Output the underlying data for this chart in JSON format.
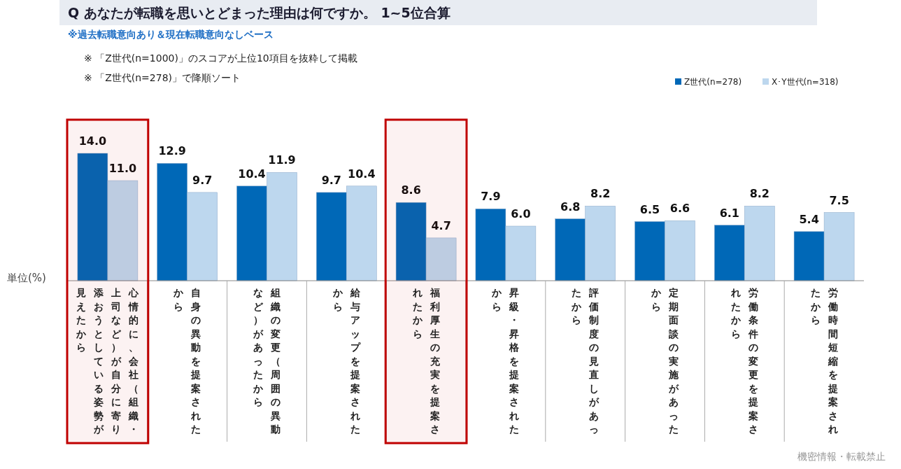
{
  "chart_data": {
    "type": "bar",
    "title": "Q あなたが転職を思いとどまった理由は何ですか。 1~5位合算",
    "subtitle": "※過去転職意向あり＆現在転職意向なしベース",
    "annotations": [
      "※ 「Z世代(n=1000)」のスコアが上位10項目を抜粋して掲載",
      "※ 「Z世代(n=278)」で降順ソート",
      "機密情報・転載禁止"
    ],
    "ylabel": "単位(%)",
    "categories": [
      "心情的に、会社（組織・上司など）が自分に寄り添おうとしている姿勢が見えたから",
      "自身の異動を提案されたから",
      "組織の変更（周囲の異動など）があったから",
      "給与アップを提案されたから",
      "福利厚生の充実を提案されたから",
      "昇級・昇格を提案されたから",
      "評価制度の見直しがあったから",
      "定期面談の実施があったから",
      "労働条件の変更を提案されたから",
      "労働時間短縮を提案されたから"
    ],
    "series": [
      {
        "name": "Z世代(n=278)",
        "color": "#0068b7",
        "values": [
          14.0,
          12.9,
          10.4,
          9.7,
          8.6,
          7.9,
          6.8,
          6.5,
          6.1,
          5.4
        ],
        "value_labels": [
          "14.0",
          "12.9",
          "10.4",
          "9.7",
          "8.6",
          "7.9",
          "6.8",
          "6.5",
          "6.1",
          "5.4"
        ]
      },
      {
        "name": "X･Y世代(n=318)",
        "color": "#bdd7ee",
        "values": [
          11.0,
          9.7,
          11.9,
          10.4,
          4.7,
          6.0,
          8.2,
          6.6,
          8.2,
          7.5
        ],
        "value_labels": [
          "11.0",
          "9.7",
          "11.9",
          "10.4",
          "4.7",
          "6.0",
          "8.2",
          "6.6",
          "8.2",
          "7.5"
        ]
      }
    ],
    "bands": [
      {
        "axis": "x",
        "from": "心情的に、会社（組織・上司など）が自分に寄り添おうとしている姿勢が見えたから",
        "to": "心情的に、会社（組織・上司など）が自分に寄り添おうとしている姿勢が見えたから",
        "color": "#c00000"
      },
      {
        "axis": "x",
        "from": "福利厚生の充実を提案されたから",
        "to": "福利厚生の充実を提案されたから",
        "color": "#c00000"
      }
    ],
    "data_labels": true,
    "legend": "top right"
  }
}
